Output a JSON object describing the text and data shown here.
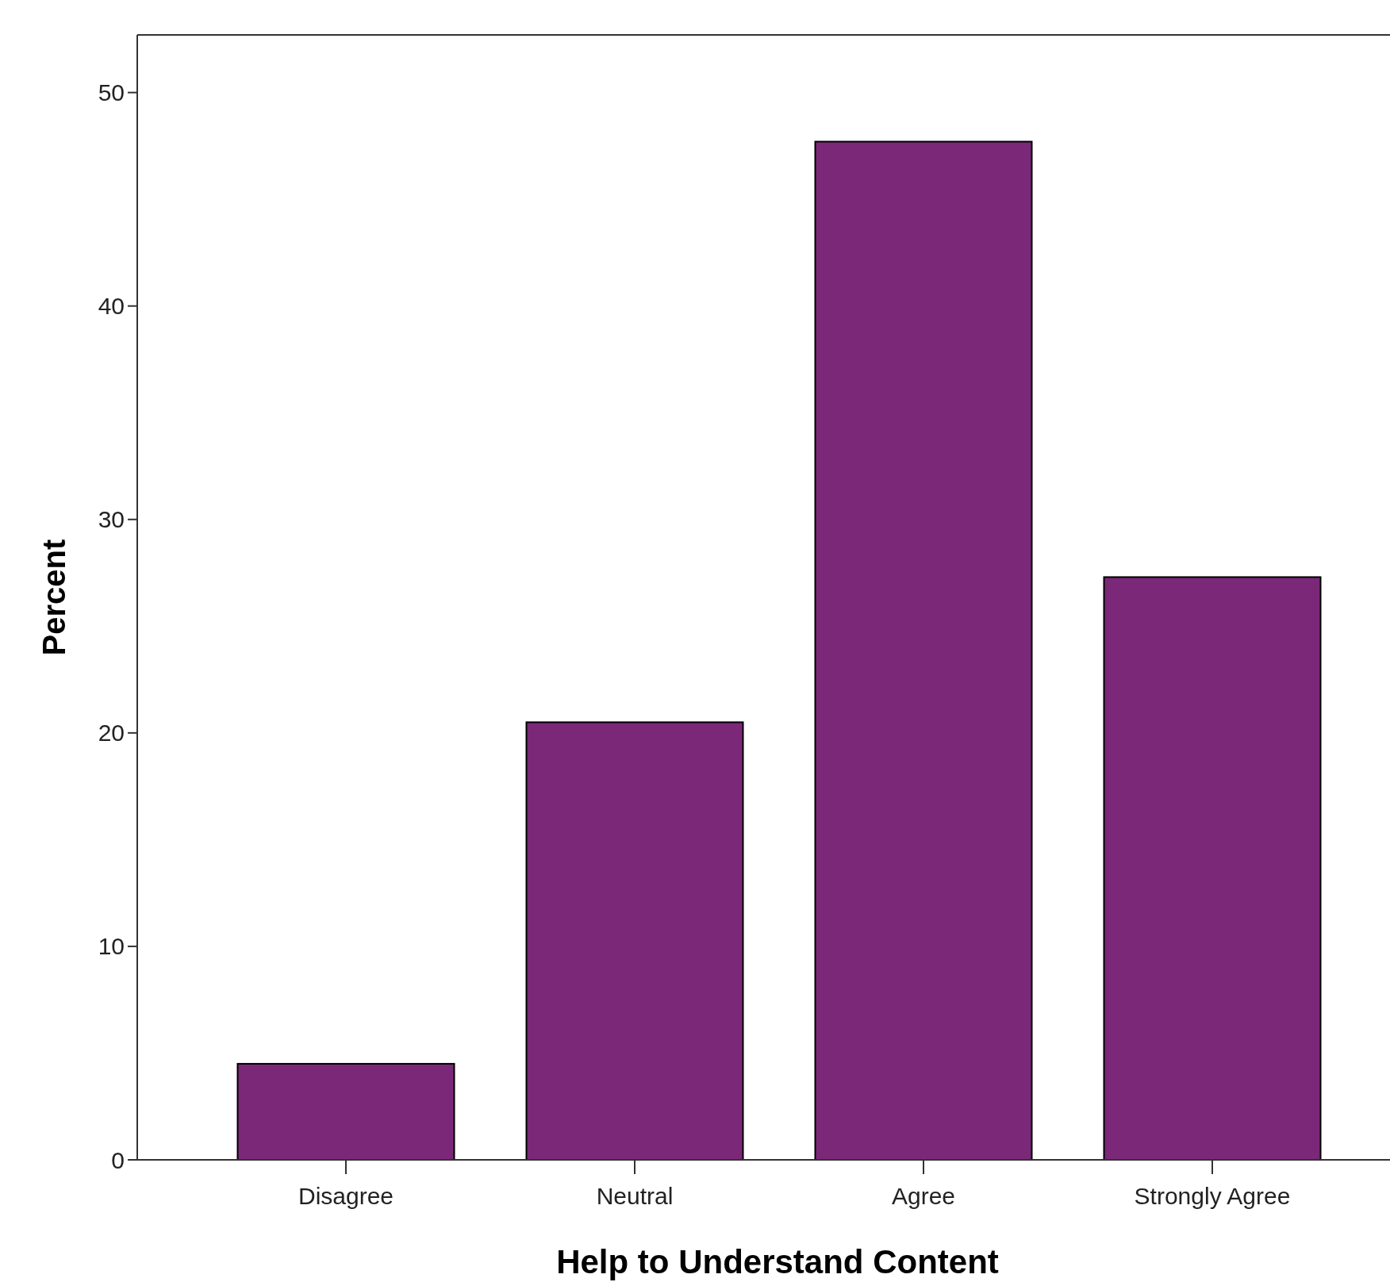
{
  "chart_data": {
    "type": "bar",
    "xlabel": "Help to Understand Content",
    "ylabel": "Percent",
    "categories": [
      "Disagree",
      "Neutral",
      "Agree",
      "Strongly Agree"
    ],
    "values": [
      4.5,
      20.5,
      47.7,
      27.3
    ],
    "color": "#7b2879",
    "ylim": [
      0,
      52.7
    ],
    "yticks": [
      0,
      10,
      20,
      30,
      40,
      50
    ],
    "grid": false
  }
}
